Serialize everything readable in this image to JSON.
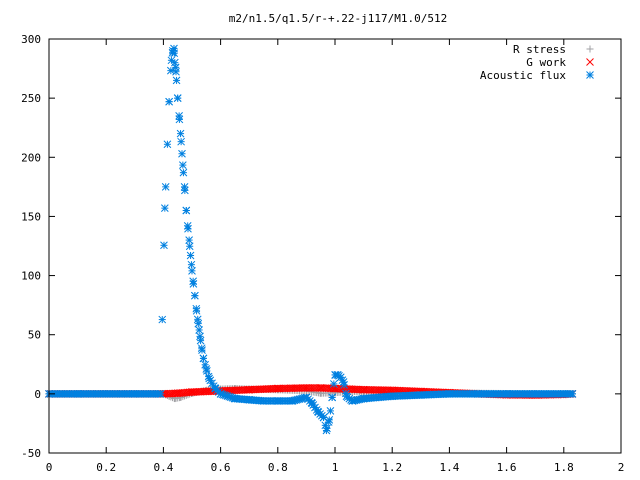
{
  "chart_data": {
    "type": "scatter",
    "title": "m2/n1.5/q1.5/r-+.22-j117/M1.0/512",
    "xlabel": "",
    "ylabel": "",
    "xlim": [
      0,
      2
    ],
    "ylim": [
      -50,
      300
    ],
    "x_ticks": [
      "0",
      "0.2",
      "0.4",
      "0.6",
      "0.8",
      "1",
      "1.2",
      "1.4",
      "1.6",
      "1.8",
      "2"
    ],
    "y_ticks": [
      "-50",
      "0",
      "50",
      "100",
      "150",
      "200",
      "250",
      "300"
    ],
    "legend_position": "top-right",
    "grid": false,
    "series": [
      {
        "name": "R stress",
        "marker": "plus",
        "color": "#a0a0a4",
        "x": [
          0.0,
          0.1,
          0.2,
          0.3,
          0.4,
          0.42,
          0.44,
          0.46,
          0.5,
          0.55,
          0.6,
          0.65,
          0.7,
          0.8,
          0.9,
          0.95,
          1.0,
          1.05,
          1.1,
          1.2,
          1.3,
          1.4,
          1.5,
          1.6,
          1.7,
          1.8,
          1.83
        ],
        "values": [
          0.0,
          0.0,
          0.0,
          0.0,
          0.0,
          -2.0,
          -4.0,
          -3.0,
          0.5,
          3.0,
          4.0,
          4.5,
          4.0,
          3.5,
          2.5,
          0.5,
          1.0,
          2.0,
          2.0,
          1.5,
          1.0,
          0.8,
          0.5,
          0.3,
          0.1,
          0.0,
          0.0
        ]
      },
      {
        "name": "G work",
        "marker": "cross",
        "color": "#ff0000",
        "x": [
          0.0,
          0.4,
          0.45,
          0.5,
          0.6,
          0.7,
          0.8,
          0.9,
          0.95,
          1.0,
          1.05,
          1.1,
          1.2,
          1.3,
          1.4,
          1.5,
          1.6,
          1.7,
          1.8,
          1.83
        ],
        "values": [
          0.0,
          0.0,
          0.5,
          1.5,
          2.5,
          3.5,
          4.5,
          5.0,
          5.0,
          4.5,
          4.0,
          3.5,
          3.0,
          2.0,
          1.0,
          0.0,
          -0.8,
          -1.0,
          -0.5,
          0.0
        ]
      },
      {
        "name": "Acoustic flux",
        "marker": "star",
        "color": "#0080e0",
        "x": [
          0.0,
          0.1,
          0.2,
          0.3,
          0.39,
          0.405,
          0.42,
          0.428,
          0.433,
          0.437,
          0.44,
          0.443,
          0.446,
          0.45,
          0.455,
          0.46,
          0.465,
          0.47,
          0.475,
          0.48,
          0.485,
          0.49,
          0.495,
          0.5,
          0.505,
          0.51,
          0.515,
          0.52,
          0.525,
          0.53,
          0.535,
          0.54,
          0.55,
          0.56,
          0.58,
          0.6,
          0.65,
          0.7,
          0.75,
          0.8,
          0.85,
          0.9,
          0.92,
          0.94,
          0.96,
          0.97,
          0.98,
          0.99,
          1.0,
          1.01,
          1.02,
          1.03,
          1.04,
          1.06,
          1.1,
          1.2,
          1.3,
          1.4,
          1.5,
          1.6,
          1.7,
          1.8,
          1.83
        ],
        "values": [
          0.0,
          0.0,
          0.0,
          0.0,
          0.0,
          157,
          247,
          282,
          290,
          292,
          280,
          276,
          265,
          250,
          235,
          220,
          203,
          187,
          172,
          155,
          142,
          130,
          117,
          104,
          93,
          83,
          72,
          63,
          54,
          45,
          37,
          30,
          21,
          13,
          5,
          0,
          -4,
          -5,
          -6,
          -6,
          -6,
          -3,
          -8,
          -15,
          -20,
          -31,
          -22,
          -3,
          16,
          16,
          14,
          10,
          -2,
          -6,
          -4,
          -2,
          -1,
          0.0,
          0.0,
          0.0,
          0.0,
          0.0,
          0.0
        ]
      }
    ]
  }
}
